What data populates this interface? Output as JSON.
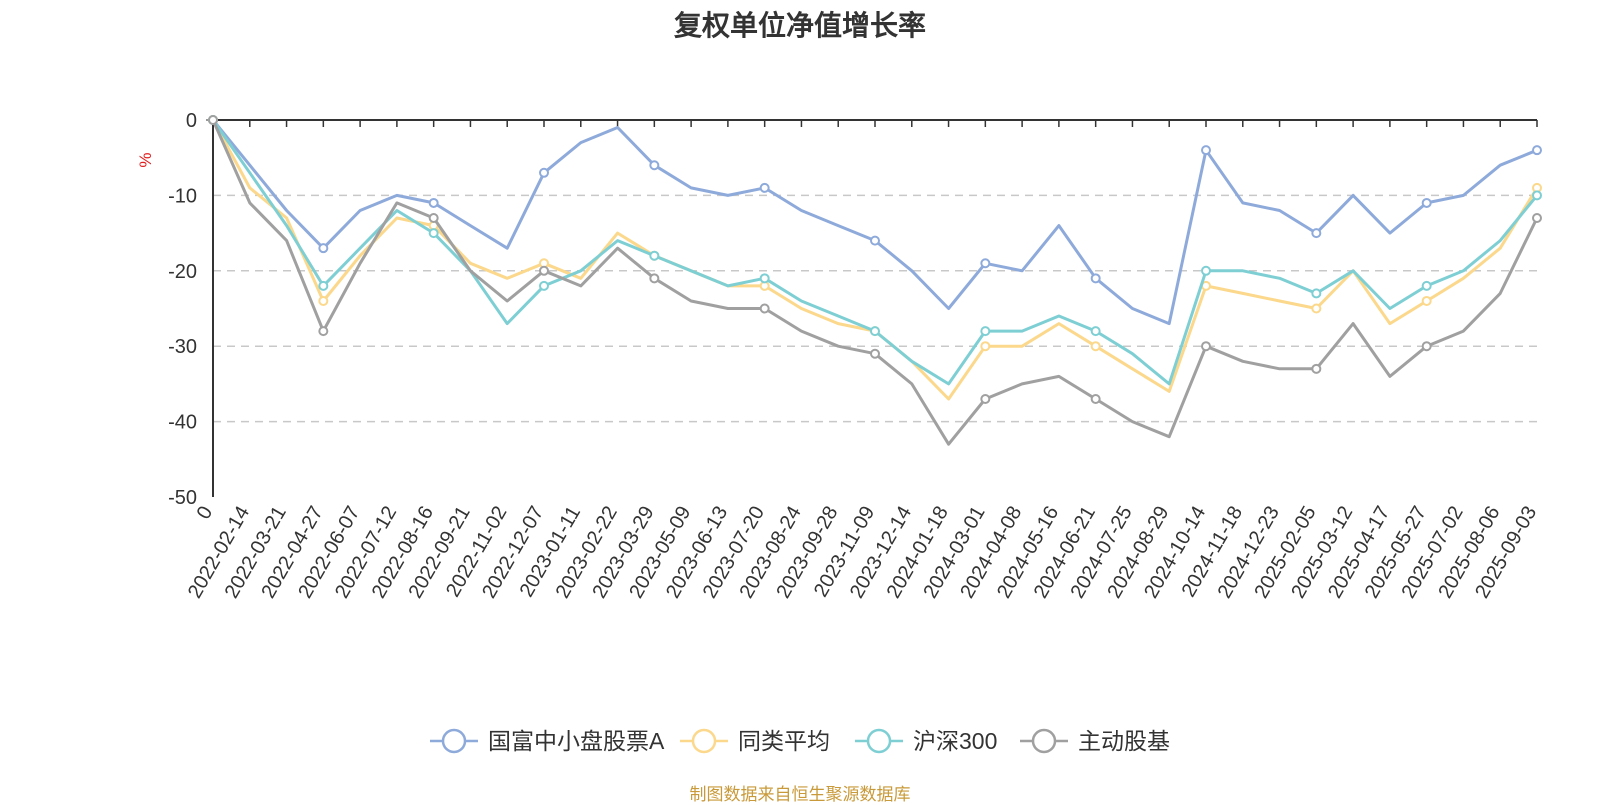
{
  "chart_data": {
    "type": "line",
    "title": "复权单位净值增长率",
    "ylabel": "%",
    "ylim": [
      -50,
      0
    ],
    "yticks": [
      0,
      -10,
      -20,
      -30,
      -40,
      -50
    ],
    "xticks": [
      "0",
      "2022-02-14",
      "2022-03-21",
      "2022-04-27",
      "2022-06-07",
      "2022-07-12",
      "2022-08-16",
      "2022-09-21",
      "2022-11-02",
      "2022-12-07",
      "2023-01-11",
      "2023-02-22",
      "2023-03-29",
      "2023-05-09",
      "2023-06-13",
      "2023-07-20",
      "2023-08-24",
      "2023-09-28",
      "2023-11-09",
      "2023-12-14",
      "2024-01-18",
      "2024-03-01",
      "2024-04-08",
      "2024-05-16",
      "2024-06-21",
      "2024-07-25",
      "2024-08-29",
      "2024-10-14",
      "2024-11-18",
      "2024-12-23",
      "2025-02-05",
      "2025-03-12",
      "2025-04-17",
      "2025-05-27",
      "2025-07-02",
      "2025-08-06",
      "2025-09-03"
    ],
    "grid": true,
    "legend_position": "bottom",
    "source_note": "制图数据来自恒生聚源数据库",
    "x_index": [
      0,
      1,
      2,
      3,
      4,
      5,
      6,
      7,
      8,
      9,
      10,
      11,
      12,
      13,
      14,
      15,
      16,
      17,
      18,
      19,
      20,
      21,
      22,
      23,
      24,
      25,
      26,
      27,
      28,
      29,
      30,
      31,
      32,
      33,
      34,
      35,
      36
    ],
    "series": [
      {
        "name": "国富中小盘股票A",
        "color": "#8eaadb",
        "values": [
          0,
          -6,
          -12,
          -17,
          -12,
          -10,
          -11,
          -14,
          -17,
          -7,
          -3,
          -1,
          -6,
          -9,
          -10,
          -9,
          -12,
          -14,
          -16,
          -20,
          -25,
          -19,
          -20,
          -14,
          -21,
          -25,
          -27,
          -4,
          -11,
          -12,
          -15,
          -10,
          -15,
          -11,
          -10,
          -6,
          -4
        ]
      },
      {
        "name": "同类平均",
        "color": "#fbd88b",
        "values": [
          0,
          -9,
          -13,
          -24,
          -18,
          -13,
          -14,
          -19,
          -21,
          -19,
          -21,
          -15,
          -18,
          -20,
          -22,
          -22,
          -25,
          -27,
          -28,
          -32,
          -37,
          -30,
          -30,
          -27,
          -30,
          -33,
          -36,
          -22,
          -23,
          -24,
          -25,
          -20,
          -27,
          -24,
          -21,
          -17,
          -9
        ]
      },
      {
        "name": "沪深300",
        "color": "#7ecfd4",
        "values": [
          0,
          -7,
          -14,
          -22,
          -17,
          -12,
          -15,
          -20,
          -27,
          -22,
          -20,
          -16,
          -18,
          -20,
          -22,
          -21,
          -24,
          -26,
          -28,
          -32,
          -35,
          -28,
          -28,
          -26,
          -28,
          -31,
          -35,
          -20,
          -20,
          -21,
          -23,
          -20,
          -25,
          -22,
          -20,
          -16,
          -10
        ]
      },
      {
        "name": "主动股基",
        "color": "#a0a0a0",
        "values": [
          0,
          -11,
          -16,
          -28,
          -19,
          -11,
          -13,
          -20,
          -24,
          -20,
          -22,
          -17,
          -21,
          -24,
          -25,
          -25,
          -28,
          -30,
          -31,
          -35,
          -43,
          -37,
          -35,
          -34,
          -37,
          -40,
          -42,
          -30,
          -32,
          -33,
          -33,
          -27,
          -34,
          -30,
          -28,
          -23,
          -13
        ]
      }
    ]
  }
}
